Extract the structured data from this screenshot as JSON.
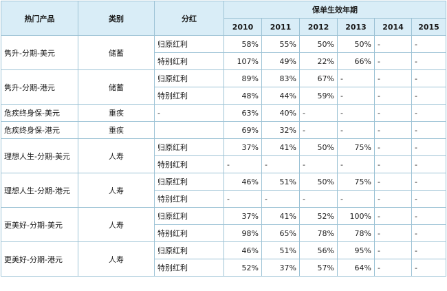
{
  "headers": {
    "product": "热门产品",
    "category": "类别",
    "dividend": "分红",
    "effective_year": "保单生效年期",
    "years": [
      "2010",
      "2011",
      "2012",
      "2013",
      "2014",
      "2015"
    ]
  },
  "rows": [
    {
      "product": "隽升-分期-美元",
      "category": "储蓄",
      "dividend": "归原红利",
      "values": [
        "58%",
        "55%",
        "50%",
        "50%",
        "-",
        "-"
      ]
    },
    {
      "product": "",
      "category": "",
      "dividend": "特别红利",
      "values": [
        "107%",
        "49%",
        "22%",
        "66%",
        "-",
        "-"
      ]
    },
    {
      "product": "隽升-分期-港元",
      "category": "储蓄",
      "dividend": "归原红利",
      "values": [
        "89%",
        "83%",
        "67%",
        "-",
        "-",
        "-"
      ]
    },
    {
      "product": "",
      "category": "",
      "dividend": "特别红利",
      "values": [
        "48%",
        "44%",
        "59%",
        "-",
        "-",
        "-"
      ]
    },
    {
      "product": "危疾终身保-美元",
      "category": "重疾",
      "dividend": "-",
      "values": [
        "63%",
        "40%",
        "-",
        "-",
        "-",
        "-"
      ]
    },
    {
      "product": "危疾终身保-港元",
      "category": "重疾",
      "dividend": "-",
      "values": [
        "69%",
        "32%",
        "-",
        "-",
        "-",
        "-"
      ]
    },
    {
      "product": "理想人生-分期-美元",
      "category": "人寿",
      "dividend": "归原红利",
      "values": [
        "37%",
        "41%",
        "50%",
        "75%",
        "-",
        "-"
      ]
    },
    {
      "product": "",
      "category": "",
      "dividend": "特别红利",
      "values": [
        "-",
        "-",
        "-",
        "-",
        "-",
        "-"
      ]
    },
    {
      "product": "理想人生-分期-港元",
      "category": "人寿",
      "dividend": "归原红利",
      "values": [
        "46%",
        "51%",
        "50%",
        "75%",
        "-",
        "-"
      ]
    },
    {
      "product": "",
      "category": "",
      "dividend": "特别红利",
      "values": [
        "-",
        "-",
        "-",
        "-",
        "-",
        "-"
      ]
    },
    {
      "product": "更美好-分期-美元",
      "category": "人寿",
      "dividend": "归原红利",
      "values": [
        "37%",
        "41%",
        "52%",
        "100%",
        "-",
        "-"
      ]
    },
    {
      "product": "",
      "category": "",
      "dividend": "特别红利",
      "values": [
        "98%",
        "65%",
        "78%",
        "78%",
        "-",
        "-"
      ]
    },
    {
      "product": "更美好-分期-港元",
      "category": "人寿",
      "dividend": "归原红利",
      "values": [
        "46%",
        "51%",
        "56%",
        "95%",
        "-",
        "-"
      ]
    },
    {
      "product": "",
      "category": "",
      "dividend": "特别红利",
      "values": [
        "52%",
        "37%",
        "57%",
        "64%",
        "-",
        "-"
      ]
    }
  ]
}
